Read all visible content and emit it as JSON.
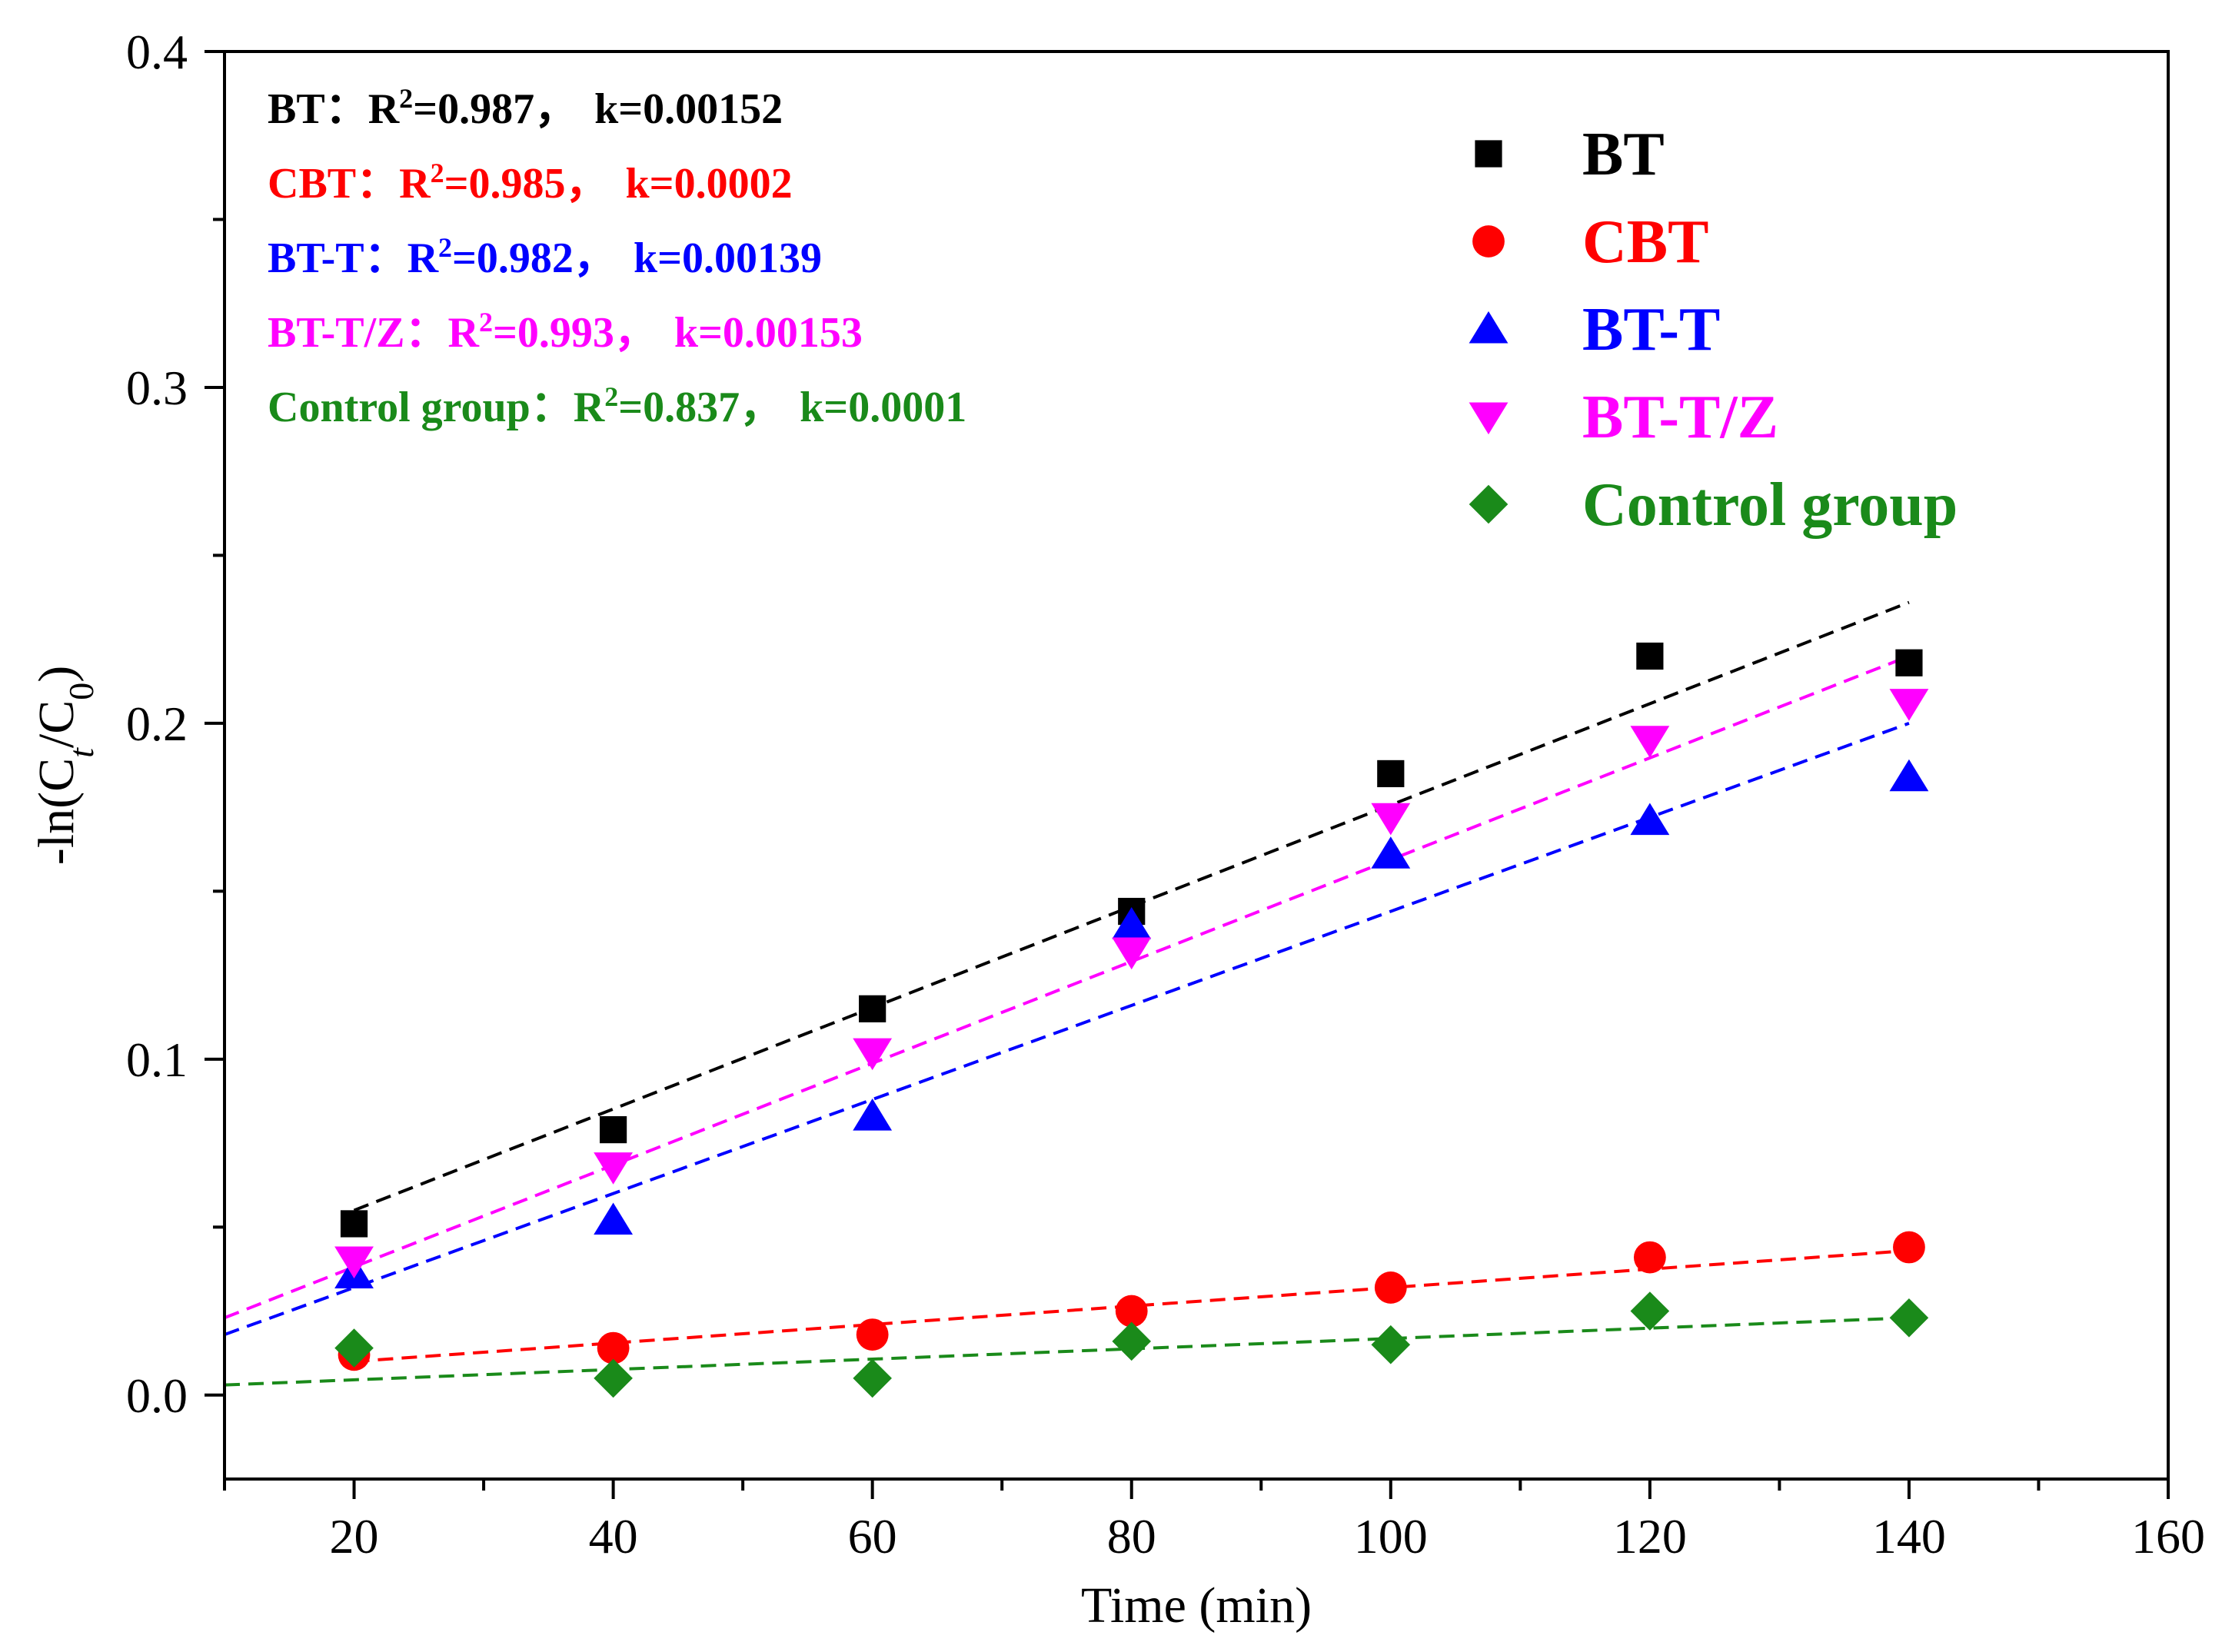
{
  "chart_data": {
    "type": "scatter",
    "title": "",
    "xlabel": "Time (min)",
    "ylabel": {
      "prefix": "-ln(C",
      "sub1": "t",
      "mid": "/C",
      "sub2": "0",
      "suffix": ")"
    },
    "xlim": [
      10,
      160
    ],
    "ylim": [
      -0.025,
      0.4
    ],
    "xticks": [
      20,
      40,
      60,
      80,
      100,
      120,
      140,
      160
    ],
    "xtick_labels": [
      "20",
      "40",
      "60",
      "80",
      "100",
      "120",
      "140",
      "160"
    ],
    "xminor_step": 10,
    "yticks": [
      0.0,
      0.1,
      0.2,
      0.3,
      0.4
    ],
    "ytick_labels": [
      "0.0",
      "0.1",
      "0.2",
      "0.3",
      "0.4"
    ],
    "yminor_step": 0.05,
    "grid": false,
    "legend_position": "top-right",
    "series": [
      {
        "name": "BT",
        "color": "#000000",
        "marker": "square",
        "x": [
          20,
          40,
          60,
          80,
          100,
          120,
          140
        ],
        "y": [
          0.051,
          0.079,
          0.115,
          0.144,
          0.185,
          0.22,
          0.218
        ],
        "fit": {
          "x": [
            20,
            140
          ],
          "y": [
            0.055,
            0.236
          ]
        },
        "annotation": {
          "name": "BT",
          "sep": "：",
          "r2_label": "R",
          "r2_exp": "2",
          "r2_value": "=0.987，",
          "k_text": "k=0.00152"
        }
      },
      {
        "name": "CBT",
        "color": "#ff0000",
        "marker": "circle",
        "x": [
          20,
          40,
          60,
          80,
          100,
          120,
          140
        ],
        "y": [
          0.012,
          0.014,
          0.018,
          0.025,
          0.032,
          0.041,
          0.044
        ],
        "fit": {
          "x": [
            20,
            140
          ],
          "y": [
            0.01,
            0.043
          ]
        },
        "annotation": {
          "name": "CBT",
          "sep": "：",
          "r2_label": "R",
          "r2_exp": "2",
          "r2_value": "=0.985，",
          "k_text": "k=0.0002"
        }
      },
      {
        "name": "BT-T",
        "color": "#0000ff",
        "marker": "triangle-up",
        "x": [
          20,
          40,
          60,
          80,
          100,
          120,
          140
        ],
        "y": [
          0.036,
          0.052,
          0.083,
          0.14,
          0.161,
          0.171,
          0.184
        ],
        "fit": {
          "x": [
            10,
            140
          ],
          "y": [
            0.018,
            0.2
          ]
        },
        "annotation": {
          "name": "BT-T",
          "sep": "：",
          "r2_label": "R",
          "r2_exp": "2",
          "r2_value": "=0.982，",
          "k_text": "k=0.00139"
        }
      },
      {
        "name": "BT-T/Z",
        "color": "#ff00ff",
        "marker": "triangle-down",
        "x": [
          20,
          40,
          60,
          80,
          100,
          120,
          140
        ],
        "y": [
          0.04,
          0.068,
          0.102,
          0.132,
          0.172,
          0.195,
          0.206
        ],
        "fit": {
          "x": [
            10,
            140
          ],
          "y": [
            0.023,
            0.22
          ]
        },
        "annotation": {
          "name": "BT-T/Z",
          "sep": "：",
          "r2_label": "R",
          "r2_exp": "2",
          "r2_value": "=0.993，",
          "k_text": "k=0.00153"
        }
      },
      {
        "name": "Control group",
        "color": "#1a8a1a",
        "marker": "diamond",
        "x": [
          20,
          40,
          60,
          80,
          100,
          120,
          140
        ],
        "y": [
          0.014,
          0.005,
          0.005,
          0.016,
          0.015,
          0.025,
          0.023
        ],
        "fit": {
          "x": [
            10,
            140
          ],
          "y": [
            0.003,
            0.023
          ]
        },
        "annotation": {
          "name": "Control group",
          "sep": "：",
          "r2_label": "R",
          "r2_exp": "2",
          "r2_value": "=0.837，",
          "k_text": "k=0.0001"
        }
      }
    ]
  }
}
